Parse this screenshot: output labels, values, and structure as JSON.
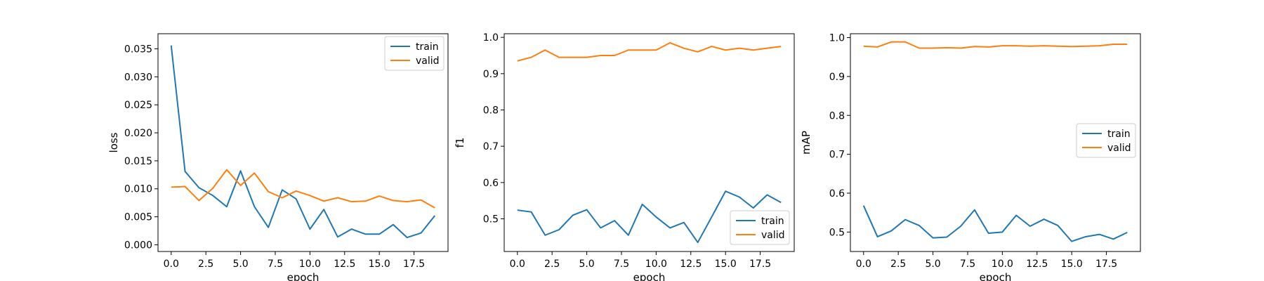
{
  "chart_data": [
    {
      "type": "line",
      "xlabel": "epoch",
      "ylabel": "loss",
      "x": [
        0,
        1,
        2,
        3,
        4,
        5,
        6,
        7,
        8,
        9,
        10,
        11,
        12,
        13,
        14,
        15,
        16,
        17,
        18,
        19
      ],
      "xticks": [
        0.0,
        2.5,
        5.0,
        7.5,
        10.0,
        12.5,
        15.0,
        17.5
      ],
      "xtick_labels": [
        "0.0",
        "2.5",
        "5.0",
        "7.5",
        "10.0",
        "12.5",
        "15.0",
        "17.5"
      ],
      "xlim": [
        -0.95,
        19.95
      ],
      "ylim": [
        -0.0012,
        0.0377
      ],
      "yticks": [
        0.0,
        0.005,
        0.01,
        0.015,
        0.02,
        0.025,
        0.03,
        0.035
      ],
      "ytick_labels": [
        "0.000",
        "0.005",
        "0.010",
        "0.015",
        "0.020",
        "0.025",
        "0.030",
        "0.035"
      ],
      "legend": "top-right",
      "series": [
        {
          "name": "train",
          "color": "#1f77b4",
          "values": [
            0.0356,
            0.0131,
            0.0102,
            0.0088,
            0.0068,
            0.0132,
            0.0068,
            0.0031,
            0.0098,
            0.0082,
            0.0028,
            0.0063,
            0.0014,
            0.0028,
            0.0019,
            0.0019,
            0.0036,
            0.0013,
            0.0021,
            0.0052
          ]
        },
        {
          "name": "valid",
          "color": "#ff7f0e",
          "values": [
            0.0103,
            0.0104,
            0.0079,
            0.0101,
            0.0134,
            0.0106,
            0.0128,
            0.0095,
            0.0084,
            0.0096,
            0.0088,
            0.0078,
            0.0084,
            0.0077,
            0.0078,
            0.0087,
            0.0079,
            0.0077,
            0.008,
            0.0066
          ]
        }
      ]
    },
    {
      "type": "line",
      "xlabel": "epoch",
      "ylabel": "f1",
      "x": [
        0,
        1,
        2,
        3,
        4,
        5,
        6,
        7,
        8,
        9,
        10,
        11,
        12,
        13,
        14,
        15,
        16,
        17,
        18,
        19
      ],
      "xticks": [
        0.0,
        2.5,
        5.0,
        7.5,
        10.0,
        12.5,
        15.0,
        17.5
      ],
      "xtick_labels": [
        "0.0",
        "2.5",
        "5.0",
        "7.5",
        "10.0",
        "12.5",
        "15.0",
        "17.5"
      ],
      "xlim": [
        -0.95,
        19.95
      ],
      "ylim": [
        0.41,
        1.01
      ],
      "yticks": [
        0.5,
        0.6,
        0.7,
        0.8,
        0.9,
        1.0
      ],
      "ytick_labels": [
        "0.5",
        "0.6",
        "0.7",
        "0.8",
        "0.9",
        "1.0"
      ],
      "legend": "bottom-right",
      "series": [
        {
          "name": "train",
          "color": "#1f77b4",
          "values": [
            0.524,
            0.519,
            0.455,
            0.47,
            0.51,
            0.525,
            0.475,
            0.495,
            0.455,
            0.54,
            0.505,
            0.475,
            0.49,
            0.435,
            0.505,
            0.576,
            0.56,
            0.53,
            0.566,
            0.545
          ]
        },
        {
          "name": "valid",
          "color": "#ff7f0e",
          "values": [
            0.935,
            0.945,
            0.965,
            0.945,
            0.945,
            0.945,
            0.95,
            0.95,
            0.965,
            0.965,
            0.965,
            0.985,
            0.97,
            0.96,
            0.975,
            0.965,
            0.97,
            0.965,
            0.97,
            0.975
          ]
        }
      ]
    },
    {
      "type": "line",
      "xlabel": "epoch",
      "ylabel": "mAP",
      "x": [
        0,
        1,
        2,
        3,
        4,
        5,
        6,
        7,
        8,
        9,
        10,
        11,
        12,
        13,
        14,
        15,
        16,
        17,
        18,
        19
      ],
      "xticks": [
        0.0,
        2.5,
        5.0,
        7.5,
        10.0,
        12.5,
        15.0,
        17.5
      ],
      "xtick_labels": [
        "0.0",
        "2.5",
        "5.0",
        "7.5",
        "10.0",
        "12.5",
        "15.0",
        "17.5"
      ],
      "xlim": [
        -0.95,
        19.95
      ],
      "ylim": [
        0.45,
        1.01
      ],
      "yticks": [
        0.5,
        0.6,
        0.7,
        0.8,
        0.9,
        1.0
      ],
      "ytick_labels": [
        "0.5",
        "0.6",
        "0.7",
        "0.8",
        "0.9",
        "1.0"
      ],
      "legend": "center-right",
      "series": [
        {
          "name": "train",
          "color": "#1f77b4",
          "values": [
            0.568,
            0.488,
            0.503,
            0.532,
            0.517,
            0.485,
            0.487,
            0.515,
            0.557,
            0.497,
            0.5,
            0.543,
            0.515,
            0.533,
            0.517,
            0.476,
            0.488,
            0.494,
            0.482,
            0.499
          ]
        },
        {
          "name": "valid",
          "color": "#ff7f0e",
          "values": [
            0.978,
            0.976,
            0.989,
            0.989,
            0.973,
            0.973,
            0.974,
            0.973,
            0.977,
            0.976,
            0.979,
            0.979,
            0.978,
            0.979,
            0.978,
            0.977,
            0.978,
            0.979,
            0.983,
            0.983
          ]
        }
      ]
    }
  ]
}
